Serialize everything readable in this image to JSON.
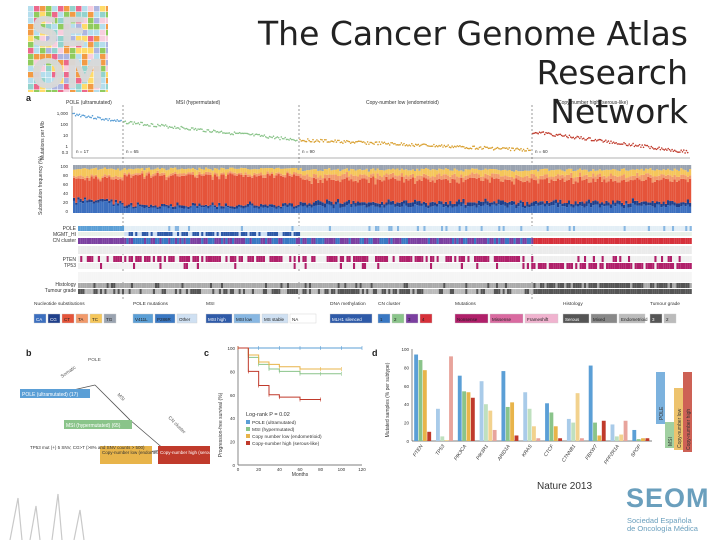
{
  "slide": {
    "title": "The Cancer Genome Atlas Research Network",
    "title_line1": "The Cancer Genome Atlas Research",
    "title_line2": "Network",
    "caption": "Nature 2013",
    "logo_text": "SEOM",
    "logo_subtitle_1": "Sociedad Española",
    "logo_subtitle_2": "de Oncología Médica"
  },
  "panel_a": {
    "label": "a",
    "groups": [
      "POLE (ultramutated)",
      "MSI (hypermutated)",
      "Copy-number low (endometrioid)",
      "Copy-number high (serous-like)"
    ],
    "group_counts": [
      "n = 17",
      "n = 65",
      "n = 90",
      "n = 60"
    ],
    "y_label_top": "Mutations per Mb",
    "y_ticks_top": [
      "1,000",
      "100",
      "10",
      "1",
      "0.3"
    ],
    "y_label_mid": "Substitution frequency (%)",
    "y_ticks_mid": [
      "100",
      "80",
      "60",
      "40",
      "20",
      "0"
    ],
    "row_labels": [
      "POLE",
      "MGMT_HI",
      "CN cluster",
      "PTEN",
      "TP53",
      "Histology",
      "Tumour grade"
    ],
    "legend_headers": [
      "Nucleotide substitutions",
      "POLE mutations",
      "MSI",
      "DNA methylation",
      "CN cluster",
      "Mutations",
      "Histology",
      "Tumour grade"
    ],
    "legend_items": {
      "substitutions": [
        "CA",
        "CG",
        "CT",
        "TA",
        "TC",
        "TG"
      ],
      "pole": [
        "V411L",
        "P286R",
        "Other"
      ],
      "msi": [
        "MSI high",
        "MSI low",
        "MS stable",
        "NA"
      ],
      "methylation": [
        "MLH1 silenced"
      ],
      "cn": [
        "1",
        "2",
        "3",
        "4"
      ],
      "mutations": [
        "Nonsense",
        "Missense",
        "Frameshift"
      ],
      "histology": [
        "Serous",
        "Mixed",
        "Endometrioid"
      ],
      "grade": [
        "3",
        "2"
      ]
    }
  },
  "panel_b": {
    "label": "b",
    "labels": [
      "POLE (ultramutated) (17)",
      "MSI (hypermutated) (65)",
      "Copy-number low (endometrioid) (90)",
      "Copy-number high (serous-like) (60)"
    ],
    "annotations": [
      "Somatic",
      "POLE",
      "MSI",
      "CN cluster"
    ],
    "criteria": "TP53 mut (+) 5 SNV, CG>T (>8% and SNV counts > 500)"
  },
  "panel_c": {
    "label": "c",
    "ylabel": "Progression-free survival (%)",
    "xlabel": "Months",
    "logrank": "Log-rank P = 0.02",
    "legend": [
      "POLE (ultramutated)",
      "MSI (hypermutated)",
      "Copy number low (endometrioid)",
      "Copy-number high (serous-like)"
    ]
  },
  "panel_d": {
    "label": "d",
    "ylabel": "Mutated samples (% per subtype)",
    "legend": [
      "POLE",
      "MSI",
      "Copy-number low",
      "Copy-number high"
    ]
  },
  "colors": {
    "pole": "#5b9fd6",
    "msi": "#8ac48a",
    "cn_low": "#e8b44a",
    "cn_high": "#c03a2b",
    "seom_blue": "#6a9fbd"
  },
  "chart_data": [
    {
      "type": "line",
      "title": "",
      "xlabel": "Months",
      "ylabel": "Progression-free survival (%)",
      "xlim": [
        0,
        120
      ],
      "ylim": [
        0,
        100
      ],
      "x_ticks": [
        0,
        20,
        40,
        60,
        80,
        100,
        120
      ],
      "y_ticks": [
        0,
        20,
        40,
        60,
        80,
        100
      ],
      "series": [
        {
          "name": "POLE (ultramutated)",
          "x": [
            0,
            20,
            40,
            60,
            80,
            100,
            120
          ],
          "values": [
            100,
            100,
            100,
            100,
            100,
            100,
            100
          ]
        },
        {
          "name": "MSI (hypermutated)",
          "x": [
            0,
            10,
            20,
            30,
            40,
            60,
            80,
            100
          ],
          "values": [
            100,
            92,
            86,
            82,
            80,
            78,
            78,
            78
          ]
        },
        {
          "name": "Copy number low (endometrioid)",
          "x": [
            0,
            10,
            20,
            30,
            40,
            60,
            80,
            100
          ],
          "values": [
            100,
            94,
            88,
            86,
            84,
            82,
            82,
            82
          ]
        },
        {
          "name": "Copy-number high (serous-like)",
          "x": [
            0,
            10,
            20,
            30,
            40,
            60,
            80
          ],
          "values": [
            100,
            80,
            68,
            60,
            58,
            56,
            56
          ]
        }
      ],
      "annotation": "Log-rank P = 0.02"
    },
    {
      "type": "bar",
      "title": "",
      "ylabel": "Mutated samples (% per subtype)",
      "ylim": [
        0,
        100
      ],
      "y_ticks": [
        0,
        20,
        40,
        60,
        80,
        100
      ],
      "categories": [
        "PTEN",
        "TP53",
        "PIK3CA",
        "PIK3R1",
        "ARID1A",
        "KRAS",
        "CTCF",
        "CTNNB1",
        "FBXW7",
        "PPP2R1A",
        "SPOP"
      ],
      "series": [
        {
          "name": "POLE",
          "values": [
            94,
            35,
            71,
            65,
            76,
            53,
            41,
            24,
            82,
            18,
            12
          ]
        },
        {
          "name": "MSI",
          "values": [
            88,
            5,
            54,
            40,
            37,
            35,
            31,
            20,
            20,
            5,
            2
          ]
        },
        {
          "name": "Copy-number low",
          "values": [
            77,
            1,
            53,
            33,
            42,
            16,
            16,
            52,
            6,
            7,
            3
          ]
        },
        {
          "name": "Copy-number high",
          "values": [
            10,
            92,
            47,
            12,
            6,
            3,
            3,
            3,
            22,
            22,
            3
          ]
        }
      ]
    }
  ]
}
